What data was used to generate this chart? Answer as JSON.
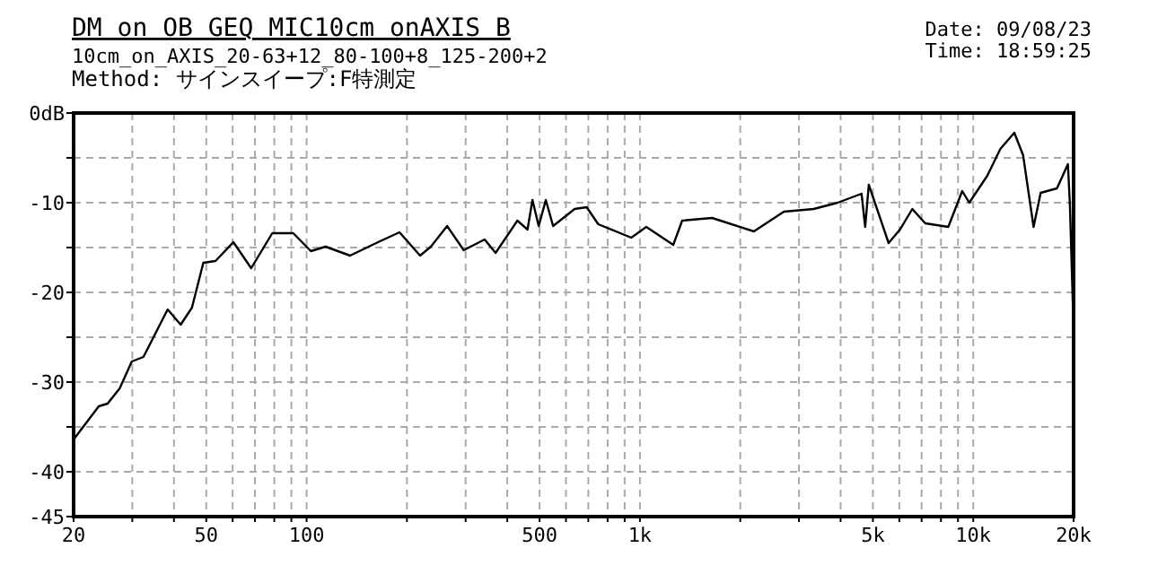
{
  "chart_data": {
    "type": "line",
    "title": "DM on OB GEQ MIC10cm onAXIS B",
    "subtitle": "10cm_on_AXIS_20-63+12_80-100+8_125-200+2",
    "annotations": [
      "Method: サインスイープ:F特測定",
      "Date: 09/08/23",
      "Time: 18:59:25"
    ],
    "log": "x",
    "grid": true,
    "marker": "none",
    "line_style": "solid",
    "xlim": [
      20,
      20000
    ],
    "ylim": [
      -45,
      0
    ],
    "xticks": [
      20,
      {
        "value": 30,
        "label": null
      },
      {
        "value": 40,
        "label": null
      },
      50,
      {
        "value": 60,
        "label": null
      },
      {
        "value": 70,
        "label": null
      },
      {
        "value": 80,
        "label": null
      },
      {
        "value": 90,
        "label": null
      },
      100,
      {
        "value": 200,
        "label": null
      },
      {
        "value": 300,
        "label": null
      },
      {
        "value": 400,
        "label": null
      },
      500,
      {
        "value": 600,
        "label": null
      },
      {
        "value": 700,
        "label": null
      },
      {
        "value": 800,
        "label": null
      },
      {
        "value": 900,
        "label": null
      },
      {
        "value": 1000,
        "label": "1k"
      },
      {
        "value": 2000,
        "label": null
      },
      {
        "value": 3000,
        "label": null
      },
      {
        "value": 4000,
        "label": null
      },
      {
        "value": 5000,
        "label": "5k"
      },
      {
        "value": 6000,
        "label": null
      },
      {
        "value": 7000,
        "label": null
      },
      {
        "value": 8000,
        "label": null
      },
      {
        "value": 9000,
        "label": null
      },
      {
        "value": 10000,
        "label": "10k"
      },
      {
        "value": 20000,
        "label": "20k"
      }
    ],
    "yticks": [
      {
        "value": 0,
        "label": "0dB"
      },
      {
        "value": -5,
        "label": null
      },
      -10,
      {
        "value": -15,
        "label": null
      },
      -20,
      {
        "value": -25,
        "label": null
      },
      -30,
      {
        "value": -35,
        "label": null
      },
      -40,
      -45
    ],
    "series": [
      {
        "color": "#000000",
        "x": [
          20,
          23.8,
          25.3,
          27.5,
          29.9,
          32.4,
          38.3,
          41.9,
          45.3,
          49,
          53.3,
          60.3,
          68.2,
          78.9,
          91.2,
          103,
          114,
          135,
          166,
          190,
          219,
          236,
          264,
          296,
          342,
          369,
          429,
          460,
          476,
          497,
          522,
          549,
          637,
          692,
          750,
          942,
          1045,
          1259,
          1339,
          1646,
          2197,
          2704,
          3321,
          3918,
          4623,
          4740,
          4860,
          5573,
          6026,
          6565,
          7180,
          8415,
          9266,
          9730,
          11015,
          12060,
          13280,
          14110,
          15170,
          15930,
          17830,
          19230,
          19500,
          19900,
          20000
        ],
        "values": [
          -36.4,
          -32.7,
          -32.4,
          -30.7,
          -27.7,
          -27.2,
          -21.9,
          -23.6,
          -21.7,
          -16.7,
          -16.5,
          -14.4,
          -17.3,
          -13.4,
          -13.4,
          -15.4,
          -14.9,
          -15.9,
          -14.3,
          -13.3,
          -15.9,
          -14.9,
          -12.6,
          -15.3,
          -14.1,
          -15.6,
          -12.0,
          -13.0,
          -9.7,
          -12.6,
          -9.7,
          -12.6,
          -10.7,
          -10.5,
          -12.4,
          -13.9,
          -12.7,
          -14.7,
          -12.0,
          -11.7,
          -13.2,
          -11.0,
          -10.7,
          -10.0,
          -9.0,
          -12.7,
          -8.0,
          -14.5,
          -13.0,
          -10.7,
          -12.3,
          -12.7,
          -8.7,
          -10.0,
          -7.0,
          -4.0,
          -2.2,
          -4.7,
          -12.7,
          -8.9,
          -8.4,
          -5.7,
          -10.3,
          -21.5,
          -35
        ]
      }
    ]
  }
}
